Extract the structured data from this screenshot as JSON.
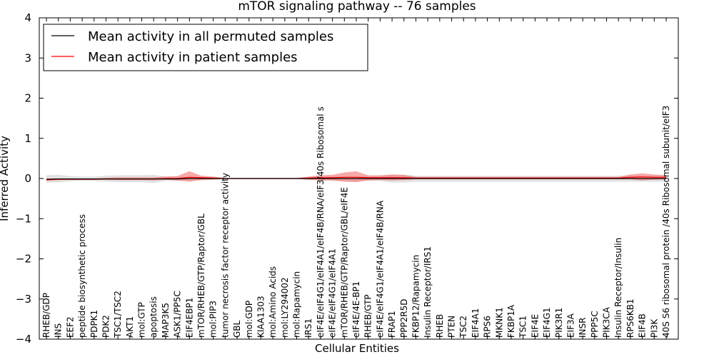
{
  "chart_data": {
    "type": "line",
    "title": "mTOR signaling pathway -- 76 samples",
    "xlabel": "Cellular Entities",
    "ylabel": "Inferred Activity",
    "ylim": [
      -4,
      4
    ],
    "yticks": [
      -4,
      -3,
      -2,
      -1,
      0,
      1,
      2,
      3,
      4
    ],
    "ytick_labels": [
      "−4",
      "−3",
      "−2",
      "−1",
      "0",
      "1",
      "2",
      "3",
      "4"
    ],
    "legend_position": "top-left",
    "categories": [
      "RHEB/GDP",
      "INS",
      "EEF2",
      "peptide biosynthetic process",
      "PDPK1",
      "PDK2",
      "TSC1/TSC2",
      "AKT1",
      "mol:GTP",
      "apoptosis",
      "MAP3K5",
      "ASK1/PP5C",
      "EIF4EBP1",
      "mTOR/RHEB/GTP/Raptor/GBL",
      "mol:PIP3",
      "tumor necrosis factor receptor activity",
      "GBL",
      "mol:GDP",
      "KIAA1303",
      "mol:Amino Acids",
      "mol:LY294002",
      "mol:Rapamycin",
      "IRS1",
      "eIF4E/eIF4G1/eIF4A1/eIF4B/RNA/eIF3/40s Ribosomal s",
      "eIF4E/eIF4G1/eIF4A1",
      "mTOR/RHEB/GTP/Raptor/GBL/eIF4E",
      "eIF4E/4E-BP1",
      "RHEB/GTP",
      "eIF4E/eIF4G1/eIF4A1/eIF4B/RNA",
      "FRAP1",
      "PPP2R5D",
      "FKBP12/Rapamycin",
      "Insulin Receptor/IRS1",
      "RHEB",
      "PTEN",
      "TSC2",
      "EIF4A1",
      "RPS6",
      "MKNK1",
      "FKBP1A",
      "TSC1",
      "EIF4E",
      "EIF4G1",
      "PIK3R1",
      "EIF3A",
      "INSR",
      "PPP5C",
      "PIK3CA",
      "Insulin Receptor/Insulin",
      "RPS6KB1",
      "EIF4B",
      "PI3K",
      "40S S6 ribosomal protein /40s Ribosomal subunit/eIF3"
    ],
    "series": [
      {
        "name": "Mean activity in all permuted samples",
        "color": "#000000",
        "values": [
          -0.02,
          -0.01,
          -0.01,
          -0.01,
          -0.01,
          -0.01,
          -0.01,
          -0.01,
          -0.01,
          -0.01,
          -0.01,
          -0.01,
          0.0,
          0.0,
          0.0,
          0.0,
          0.0,
          0.0,
          0.0,
          0.0,
          0.0,
          0.0,
          0.0,
          0.0,
          0.0,
          0.0,
          0.0,
          0.0,
          0.0,
          0.0,
          0.0,
          0.0,
          0.0,
          0.0,
          0.0,
          0.0,
          0.0,
          0.0,
          0.0,
          0.0,
          0.0,
          0.0,
          0.0,
          0.0,
          0.0,
          0.0,
          0.0,
          0.0,
          0.0,
          0.0,
          0.0,
          0.0,
          0.0
        ],
        "band_lower": [
          -0.1,
          -0.1,
          -0.07,
          -0.06,
          -0.06,
          -0.08,
          -0.09,
          -0.09,
          -0.09,
          -0.11,
          -0.06,
          -0.06,
          -0.04,
          -0.03,
          -0.02,
          -0.01,
          -0.01,
          -0.01,
          -0.01,
          -0.01,
          -0.01,
          -0.01,
          -0.03,
          -0.04,
          -0.06,
          -0.06,
          -0.06,
          -0.06,
          -0.06,
          -0.1,
          -0.1,
          -0.08,
          -0.08,
          -0.08,
          -0.08,
          -0.08,
          -0.08,
          -0.08,
          -0.08,
          -0.08,
          -0.08,
          -0.08,
          -0.08,
          -0.08,
          -0.08,
          -0.08,
          -0.08,
          -0.08,
          -0.08,
          -0.08,
          -0.08,
          -0.08,
          -0.08
        ],
        "band_upper": [
          0.08,
          0.09,
          0.06,
          0.05,
          0.05,
          0.07,
          0.08,
          0.08,
          0.08,
          0.09,
          0.05,
          0.05,
          0.04,
          0.03,
          0.02,
          0.01,
          0.01,
          0.01,
          0.01,
          0.01,
          0.01,
          0.01,
          0.03,
          0.04,
          0.05,
          0.05,
          0.05,
          0.05,
          0.05,
          0.09,
          0.09,
          0.07,
          0.07,
          0.07,
          0.07,
          0.07,
          0.07,
          0.07,
          0.07,
          0.07,
          0.07,
          0.07,
          0.07,
          0.07,
          0.07,
          0.07,
          0.07,
          0.07,
          0.07,
          0.07,
          0.07,
          0.07,
          0.07
        ]
      },
      {
        "name": "Mean activity in patient samples",
        "color": "#ff0000",
        "values": [
          -0.03,
          -0.02,
          -0.02,
          -0.02,
          -0.02,
          -0.01,
          -0.01,
          -0.01,
          -0.01,
          -0.01,
          0.0,
          0.0,
          0.03,
          0.02,
          0.01,
          0.0,
          0.0,
          0.0,
          0.0,
          0.0,
          0.0,
          0.0,
          0.01,
          0.02,
          0.02,
          0.03,
          0.03,
          0.02,
          0.02,
          0.02,
          0.02,
          0.01,
          0.01,
          0.01,
          0.01,
          0.01,
          0.01,
          0.01,
          0.01,
          0.01,
          0.01,
          0.01,
          0.01,
          0.01,
          0.01,
          0.01,
          0.01,
          0.01,
          0.01,
          0.03,
          0.04,
          0.03,
          0.03
        ],
        "band_lower": [
          -0.06,
          -0.04,
          -0.03,
          -0.03,
          -0.03,
          -0.03,
          -0.04,
          -0.04,
          -0.04,
          -0.05,
          -0.03,
          -0.05,
          -0.08,
          -0.04,
          -0.03,
          -0.01,
          -0.01,
          -0.01,
          -0.01,
          -0.01,
          -0.01,
          -0.01,
          -0.03,
          -0.05,
          -0.05,
          -0.08,
          -0.09,
          -0.05,
          -0.04,
          -0.05,
          -0.04,
          -0.02,
          -0.02,
          -0.02,
          -0.02,
          -0.02,
          -0.02,
          -0.02,
          -0.02,
          -0.02,
          -0.02,
          -0.02,
          -0.02,
          -0.02,
          -0.02,
          -0.02,
          -0.02,
          -0.02,
          -0.02,
          -0.02,
          -0.05,
          -0.03,
          -0.02
        ],
        "band_upper": [
          0.0,
          0.0,
          0.0,
          0.0,
          0.0,
          0.02,
          0.03,
          0.03,
          0.03,
          0.03,
          0.05,
          0.06,
          0.18,
          0.07,
          0.05,
          0.01,
          0.01,
          0.01,
          0.01,
          0.01,
          0.01,
          0.01,
          0.05,
          0.08,
          0.09,
          0.15,
          0.18,
          0.08,
          0.08,
          0.1,
          0.09,
          0.04,
          0.04,
          0.04,
          0.04,
          0.04,
          0.04,
          0.04,
          0.04,
          0.04,
          0.04,
          0.04,
          0.04,
          0.04,
          0.04,
          0.04,
          0.04,
          0.04,
          0.04,
          0.1,
          0.13,
          0.1,
          0.08
        ]
      }
    ]
  }
}
